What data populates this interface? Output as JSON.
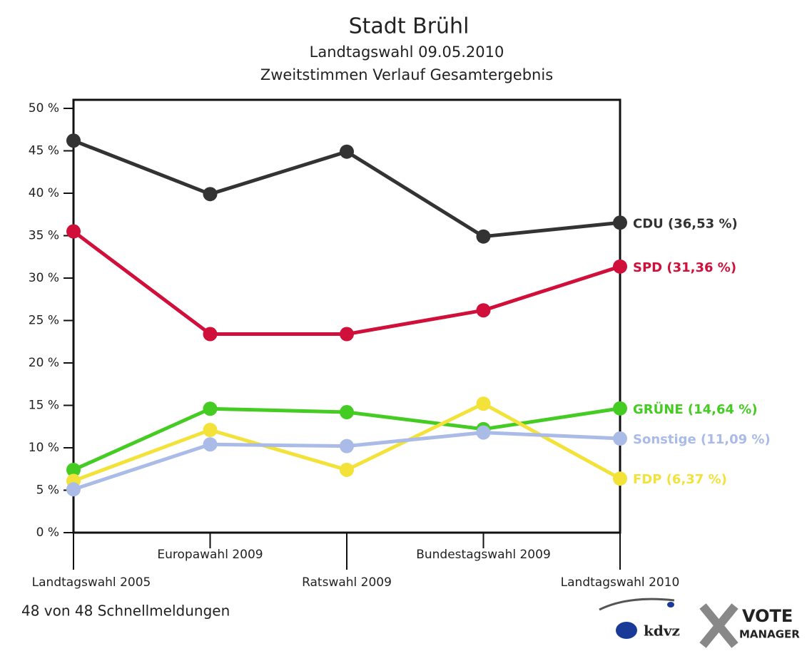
{
  "chart_data": {
    "type": "line",
    "title": "Stadt Brühl",
    "subtitle": [
      "Landtagswahl 09.05.2010",
      "Zweitstimmen Verlauf Gesamtergebnis"
    ],
    "categories": [
      "Landtagswahl 2005",
      "Europawahl 2009",
      "Ratswahl 2009",
      "Bundestagswahl 2009",
      "Landtagswahl 2010"
    ],
    "series": [
      {
        "name": "CDU",
        "label": "CDU (36,53 %)",
        "color": "#333333",
        "values": [
          46.2,
          39.9,
          44.9,
          34.9,
          36.53
        ]
      },
      {
        "name": "SPD",
        "label": "SPD (31,36 %)",
        "color": "#d0103a",
        "values": [
          35.5,
          23.4,
          23.4,
          26.2,
          31.36
        ]
      },
      {
        "name": "GRÜNE",
        "label": "GRÜNE (14,64 %)",
        "color": "#44cc22",
        "values": [
          7.4,
          14.6,
          14.2,
          12.2,
          14.64
        ]
      },
      {
        "name": "FDP",
        "label": "FDP (6,37 %)",
        "color": "#f2e23a",
        "values": [
          6.1,
          12.1,
          7.4,
          15.2,
          6.37
        ]
      },
      {
        "name": "Sonstige",
        "label": "Sonstige (11,09 %)",
        "color": "#aabbe8",
        "values": [
          5.1,
          10.4,
          10.2,
          11.8,
          11.09
        ]
      }
    ],
    "ylim": [
      0,
      50
    ],
    "yticks": [
      {
        "value": 0,
        "label": "0 %"
      },
      {
        "value": 5,
        "label": "5 %"
      },
      {
        "value": 10,
        "label": "10 %"
      },
      {
        "value": 15,
        "label": "15 %"
      },
      {
        "value": 20,
        "label": "20 %"
      },
      {
        "value": 25,
        "label": "25 %"
      },
      {
        "value": 30,
        "label": "30 %"
      },
      {
        "value": 35,
        "label": "35 %"
      },
      {
        "value": 40,
        "label": "40 %"
      },
      {
        "value": 45,
        "label": "45 %"
      },
      {
        "value": 50,
        "label": "50 %"
      }
    ],
    "grid": false,
    "footer": "48 von 48 Schnellmeldungen",
    "logos": [
      "kdvz",
      "VOTE",
      "MANAGER"
    ]
  }
}
